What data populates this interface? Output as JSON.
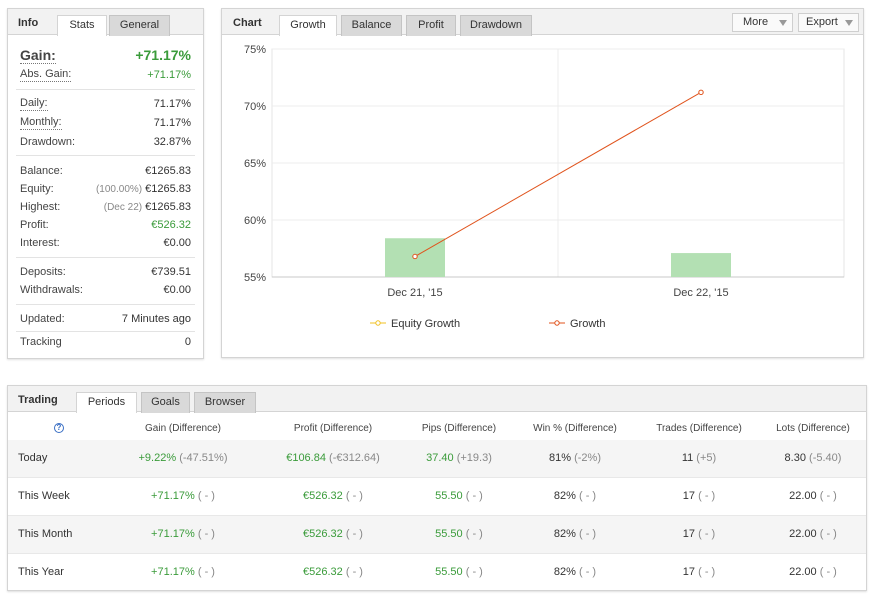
{
  "info_panel": {
    "title": "Info",
    "tabs": [
      "Stats",
      "General"
    ],
    "gain": {
      "label": "Gain:",
      "value": "+71.17%"
    },
    "abs_gain": {
      "label": "Abs. Gain:",
      "value": "+71.17%"
    },
    "daily": {
      "label": "Daily:",
      "value": "71.17%"
    },
    "monthly": {
      "label": "Monthly:",
      "value": "71.17%"
    },
    "drawdown": {
      "label": "Drawdown:",
      "value": "32.87%"
    },
    "balance": {
      "label": "Balance:",
      "value": "€1265.83"
    },
    "equity": {
      "label": "Equity:",
      "prefix": "(100.00%)",
      "value": "€1265.83"
    },
    "highest": {
      "label": "Highest:",
      "prefix": "(Dec 22)",
      "value": "€1265.83"
    },
    "profit": {
      "label": "Profit:",
      "value": "€526.32"
    },
    "interest": {
      "label": "Interest:",
      "value": "€0.00"
    },
    "deposits": {
      "label": "Deposits:",
      "value": "€739.51"
    },
    "withdrawals": {
      "label": "Withdrawals:",
      "value": "€0.00"
    },
    "updated": {
      "label": "Updated:",
      "value": "7 Minutes ago"
    },
    "tracking": {
      "label": "Tracking",
      "value": "0"
    }
  },
  "chart_panel": {
    "title": "Chart",
    "tabs": [
      "Growth",
      "Balance",
      "Profit",
      "Drawdown"
    ],
    "more_label": "More",
    "export_label": "Export"
  },
  "chart_data": {
    "type": "line",
    "categories": [
      "Dec 21, '15",
      "Dec 22, '15"
    ],
    "series": [
      {
        "name": "Equity Growth",
        "type": "bar",
        "values": [
          58.4,
          57.1
        ],
        "color": "#b3e0b3"
      },
      {
        "name": "Growth",
        "type": "line",
        "values": [
          56.8,
          71.2
        ],
        "color": "#e0531c"
      }
    ],
    "legend_colors": {
      "Equity Growth": "#f0c020",
      "Growth": "#e0531c"
    },
    "ylim": [
      55,
      75
    ],
    "yticks": [
      55,
      60,
      65,
      70,
      75
    ],
    "ytick_labels": [
      "55%",
      "60%",
      "65%",
      "70%",
      "75%"
    ],
    "legend_position": "bottom",
    "grid": true
  },
  "trading_panel": {
    "title": "Trading",
    "tabs": [
      "Periods",
      "Goals",
      "Browser"
    ],
    "help_icon": "?",
    "columns": [
      "Gain (Difference)",
      "Profit (Difference)",
      "Pips (Difference)",
      "Win % (Difference)",
      "Trades (Difference)",
      "Lots (Difference)"
    ],
    "rows": [
      {
        "period": "Today",
        "gain": "+9.22%",
        "gain_diff": "(-47.51%)",
        "profit": "€106.84",
        "profit_diff": "(-€312.64)",
        "pips": "37.40",
        "pips_diff": "(+19.3)",
        "win": "81%",
        "win_diff": "(-2%)",
        "trades": "11",
        "trades_diff": "(+5)",
        "lots": "8.30",
        "lots_diff": "(-5.40)"
      },
      {
        "period": "This Week",
        "gain": "+71.17%",
        "gain_diff": "( - )",
        "profit": "€526.32",
        "profit_diff": "( - )",
        "pips": "55.50",
        "pips_diff": "( - )",
        "win": "82%",
        "win_diff": "( - )",
        "trades": "17",
        "trades_diff": "( - )",
        "lots": "22.00",
        "lots_diff": "( - )"
      },
      {
        "period": "This Month",
        "gain": "+71.17%",
        "gain_diff": "( - )",
        "profit": "€526.32",
        "profit_diff": "( - )",
        "pips": "55.50",
        "pips_diff": "( - )",
        "win": "82%",
        "win_diff": "( - )",
        "trades": "17",
        "trades_diff": "( - )",
        "lots": "22.00",
        "lots_diff": "( - )"
      },
      {
        "period": "This Year",
        "gain": "+71.17%",
        "gain_diff": "( - )",
        "profit": "€526.32",
        "profit_diff": "( - )",
        "pips": "55.50",
        "pips_diff": "( - )",
        "win": "82%",
        "win_diff": "( - )",
        "trades": "17",
        "trades_diff": "( - )",
        "lots": "22.00",
        "lots_diff": "( - )"
      }
    ]
  }
}
